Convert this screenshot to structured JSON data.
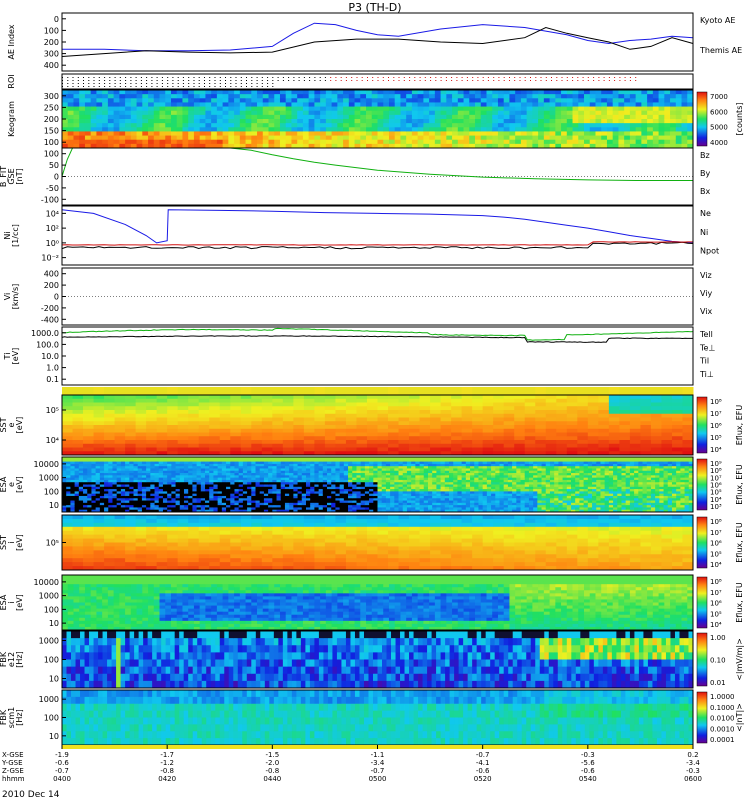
{
  "title": "P3 (TH-D)",
  "date_label": "2010 Dec 14",
  "colors": {
    "black": "#000000",
    "blue": "#1a1ae6",
    "red": "#d01010",
    "green": "#10b010",
    "magenta": "#9010a0"
  },
  "chart_data": [
    {
      "type": "line",
      "panel": "ae",
      "ylabel": "AE Index",
      "ylim": [
        0,
        400
      ],
      "yticks": [
        "0",
        "100",
        "200",
        "300",
        "400"
      ],
      "series": [
        {
          "name": "Kyoto AE",
          "color": "blue",
          "x": [
            0,
            4,
            8,
            12,
            16,
            20,
            22,
            24,
            26,
            28,
            30,
            32,
            36,
            40,
            44,
            48,
            50,
            52,
            54,
            56,
            58,
            60
          ],
          "y": [
            150,
            150,
            140,
            140,
            145,
            170,
            260,
            330,
            320,
            280,
            250,
            240,
            290,
            320,
            300,
            250,
            210,
            190,
            210,
            220,
            240,
            230
          ]
        },
        {
          "name": "Themis AE",
          "color": "black",
          "x": [
            0,
            4,
            8,
            12,
            16,
            20,
            24,
            28,
            32,
            36,
            40,
            44,
            46,
            48,
            50,
            52,
            54,
            56,
            58,
            60
          ],
          "y": [
            100,
            120,
            140,
            130,
            125,
            130,
            200,
            220,
            220,
            200,
            190,
            230,
            300,
            260,
            230,
            200,
            150,
            170,
            230,
            190
          ]
        }
      ]
    },
    {
      "type": "scatter",
      "panel": "roi",
      "ylabel": "ROI"
    },
    {
      "type": "heatmap",
      "panel": "keogram",
      "ylabel": "Keogram",
      "yticks": [
        "300",
        "250",
        "200",
        "150",
        "100"
      ],
      "colorbar_ticks": [
        "7000",
        "6000",
        "5000",
        "4000"
      ],
      "colorbar_label": "[counts]"
    },
    {
      "type": "line",
      "panel": "bfit",
      "ylabel_lines": [
        "B_FIT",
        "GSE",
        "[nT]"
      ],
      "ylim": [
        -100,
        100
      ],
      "yticks": [
        "100",
        "50",
        "0",
        "-50",
        "-100"
      ],
      "legend": [
        {
          "name": "Bz",
          "color": "red"
        },
        {
          "name": "By",
          "color": "green"
        },
        {
          "name": "Bx",
          "color": "blue"
        }
      ],
      "series": [
        {
          "name": "By",
          "color": "green",
          "x": [
            0,
            0.5,
            1,
            16,
            18,
            20,
            22,
            24,
            26,
            30,
            35,
            40,
            45,
            50,
            55,
            60
          ],
          "y": [
            0,
            60,
            100,
            100,
            92,
            76,
            62,
            50,
            40,
            22,
            8,
            -2,
            -8,
            -12,
            -14,
            -14
          ]
        }
      ]
    },
    {
      "type": "line",
      "panel": "ni",
      "ylabel_lines": [
        "Ni",
        "[1/cc]"
      ],
      "yticks": [
        "10⁴",
        "10²",
        "10⁰",
        "10⁻²"
      ],
      "legend": [
        {
          "name": "Ne",
          "color": "red"
        },
        {
          "name": "Ni",
          "color": "black"
        },
        {
          "name": "Npot",
          "color": "blue"
        }
      ],
      "series": [
        {
          "name": "Npot",
          "color": "blue",
          "x": [
            0,
            3,
            6,
            8,
            9,
            10,
            10.1,
            15,
            20,
            25,
            30,
            35,
            40,
            42,
            44,
            46,
            48,
            50,
            52,
            54,
            56,
            58,
            60
          ],
          "y": [
            5,
            4.5,
            3,
            1.5,
            0.5,
            0.8,
            5,
            4.9,
            4.8,
            4.6,
            4.5,
            4.4,
            4.2,
            4,
            3.7,
            3.3,
            2.9,
            2.5,
            2,
            1.5,
            1.1,
            0.7,
            0.5
          ]
        }
      ]
    },
    {
      "type": "line",
      "panel": "vi",
      "ylabel_lines": [
        "Vi",
        "[km/s]"
      ],
      "ylim": [
        -600,
        600
      ],
      "yticks": [
        "400",
        "200",
        "0",
        "-200",
        "-400"
      ],
      "legend": [
        {
          "name": "Viz",
          "color": "red"
        },
        {
          "name": "Viy",
          "color": "green"
        },
        {
          "name": "Vix",
          "color": "blue"
        }
      ]
    },
    {
      "type": "line",
      "panel": "ti",
      "ylabel_lines": [
        "Ti",
        "[eV]"
      ],
      "yticks": [
        "1000.0",
        "100.0",
        "10.0",
        "1.0",
        "0.1"
      ],
      "legend": [
        {
          "name": "Tell",
          "color": "black"
        },
        {
          "name": "Te⊥",
          "color": "red"
        },
        {
          "name": "Til",
          "color": "green"
        },
        {
          "name": "Ti⊥",
          "color": "blue"
        }
      ]
    },
    {
      "type": "heatmap",
      "panel": "sst_e",
      "ylabel_lines": [
        "SST",
        "e",
        "[eV]"
      ],
      "yticks": [
        "10⁵",
        "10⁴"
      ],
      "colorbar_label": "Eflux, EFU",
      "colorbar_ticks": [
        "10⁸",
        "10⁷",
        "10⁶",
        "10⁵",
        "10⁴"
      ]
    },
    {
      "type": "heatmap",
      "panel": "esa_e",
      "ylabel_lines": [
        "ESA",
        "e",
        "[eV]"
      ],
      "yticks": [
        "10000",
        "1000",
        "100",
        "10"
      ],
      "colorbar_label": "Eflux, EFU",
      "colorbar_ticks": [
        "10⁹",
        "10⁸",
        "10⁷",
        "10⁶",
        "10⁵",
        "10⁴",
        "10³"
      ]
    },
    {
      "type": "heatmap",
      "panel": "sst_i",
      "ylabel_lines": [
        "SST",
        "i",
        "[eV]"
      ],
      "yticks": [
        "10⁵"
      ],
      "colorbar_label": "Eflux, EFU",
      "colorbar_ticks": [
        "10⁸",
        "10⁷",
        "10⁶",
        "10⁵",
        "10⁴"
      ]
    },
    {
      "type": "heatmap",
      "panel": "esa_i",
      "ylabel_lines": [
        "ESA",
        "i",
        "[eV]"
      ],
      "yticks": [
        "10000",
        "1000",
        "100",
        "10"
      ],
      "colorbar_label": "Eflux, EFU",
      "colorbar_ticks": [
        "10⁸",
        "10⁷",
        "10⁶",
        "10⁵",
        "10⁴"
      ]
    },
    {
      "type": "heatmap",
      "panel": "fbk_e",
      "ylabel_lines": [
        "FBK",
        "e12",
        "[Hz]"
      ],
      "yticks": [
        "1000",
        "100",
        "10"
      ],
      "colorbar_label": "<|mV/m|>",
      "colorbar_ticks": [
        "1.00",
        "0.10",
        "0.01"
      ]
    },
    {
      "type": "heatmap",
      "panel": "fbk_b",
      "ylabel_lines": [
        "FBK",
        "scm1",
        "[Hz]"
      ],
      "yticks": [
        "1000",
        "100",
        "10"
      ],
      "colorbar_label": "<|nT|>",
      "colorbar_ticks": [
        "1.0000",
        "0.1000",
        "0.0100",
        "0.0010",
        "0.0001"
      ]
    }
  ],
  "xaxis": {
    "row_labels": [
      "X-GSE",
      "Y-GSE",
      "Z-GSE",
      "hhmm"
    ],
    "columns": [
      {
        "time": "0400",
        "x": "-1.9",
        "y": "-0.6",
        "z": "-0.7"
      },
      {
        "time": "0420",
        "x": "-1.7",
        "y": "-1.2",
        "z": "-0.8"
      },
      {
        "time": "0440",
        "x": "-1.5",
        "y": "-2.0",
        "z": "-0.8"
      },
      {
        "time": "0500",
        "x": "-1.1",
        "y": "-3.4",
        "z": "-0.7"
      },
      {
        "time": "0520",
        "x": "-0.7",
        "y": "-4.1",
        "z": "-0.6"
      },
      {
        "time": "0540",
        "x": "-0.3",
        "y": "-5.6",
        "z": "-0.6"
      },
      {
        "time": "0600",
        "x": "0.2",
        "y": "-3.4",
        "z": "-0.3"
      }
    ]
  }
}
